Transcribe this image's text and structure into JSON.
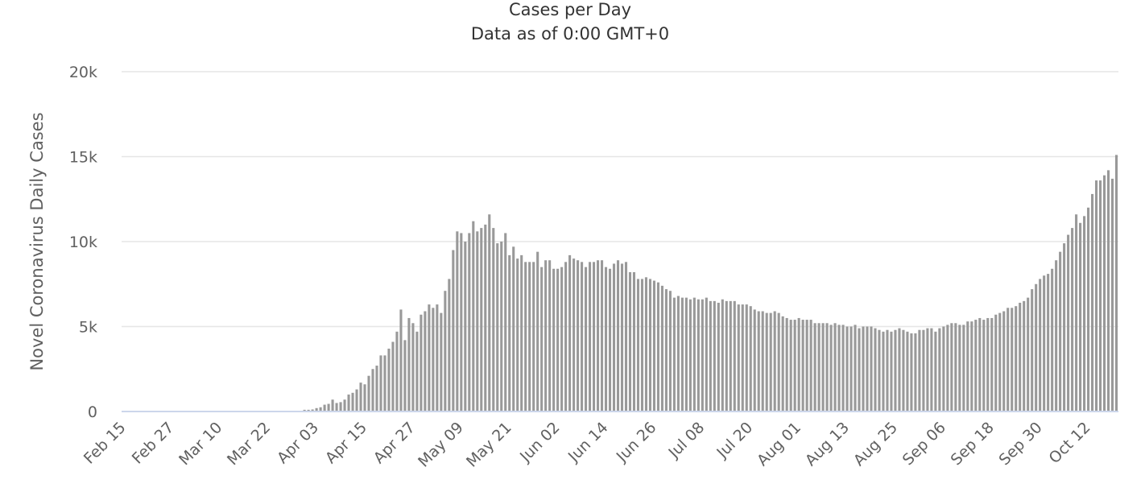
{
  "chart_data": {
    "type": "bar",
    "title": "Cases per Day",
    "subtitle": "Data as of 0:00 GMT+0",
    "ylabel": "Novel Coronavirus Daily Cases",
    "xlabel": "",
    "ylim": [
      0,
      20000
    ],
    "yticks": [
      {
        "value": 0,
        "label": "0"
      },
      {
        "value": 5000,
        "label": "5k"
      },
      {
        "value": 10000,
        "label": "10k"
      },
      {
        "value": 15000,
        "label": "15k"
      },
      {
        "value": 20000,
        "label": "20k"
      }
    ],
    "x_tick_labels": [
      "Feb 15",
      "Feb 27",
      "Mar 10",
      "Mar 22",
      "Apr 03",
      "Apr 15",
      "Apr 27",
      "May 09",
      "May 21",
      "Jun 02",
      "Jun 14",
      "Jun 26",
      "Jul 08",
      "Jul 20",
      "Aug 01",
      "Aug 13",
      "Aug 25",
      "Sep 06",
      "Sep 18",
      "Sep 30",
      "Oct 12"
    ],
    "x_start": "Feb 15",
    "grid": true,
    "legend": "none",
    "bar_color": "#999999",
    "values": [
      0,
      0,
      0,
      0,
      0,
      0,
      0,
      0,
      0,
      0,
      0,
      0,
      0,
      0,
      0,
      0,
      0,
      0,
      0,
      0,
      0,
      0,
      0,
      0,
      0,
      0,
      0,
      0,
      0,
      0,
      0,
      0,
      0,
      0,
      0,
      0,
      0,
      0,
      0,
      0,
      0,
      0,
      0,
      0,
      0,
      100,
      100,
      120,
      200,
      250,
      400,
      450,
      700,
      500,
      550,
      700,
      1000,
      1100,
      1300,
      1700,
      1600,
      2100,
      2500,
      2700,
      3300,
      3300,
      3700,
      4100,
      4700,
      6000,
      4200,
      5500,
      5200,
      4700,
      5700,
      5900,
      6300,
      6100,
      6300,
      5800,
      7100,
      7800,
      9500,
      10600,
      10500,
      10000,
      10500,
      11200,
      10600,
      10800,
      11000,
      11600,
      10800,
      9900,
      10000,
      10500,
      9200,
      9700,
      9000,
      9200,
      8800,
      8800,
      8800,
      9400,
      8500,
      8900,
      8900,
      8400,
      8400,
      8500,
      8800,
      9200,
      9000,
      8900,
      8800,
      8500,
      8800,
      8800,
      8900,
      8900,
      8500,
      8400,
      8700,
      8900,
      8700,
      8800,
      8200,
      8200,
      7800,
      7800,
      7900,
      7800,
      7700,
      7600,
      7400,
      7200,
      7100,
      6700,
      6800,
      6700,
      6700,
      6600,
      6700,
      6600,
      6600,
      6700,
      6500,
      6500,
      6400,
      6600,
      6500,
      6500,
      6500,
      6300,
      6300,
      6300,
      6200,
      6000,
      5900,
      5900,
      5800,
      5800,
      5900,
      5800,
      5600,
      5500,
      5400,
      5400,
      5500,
      5400,
      5400,
      5400,
      5200,
      5200,
      5200,
      5200,
      5100,
      5200,
      5100,
      5100,
      5000,
      5000,
      5100,
      4900,
      5000,
      5000,
      5000,
      4900,
      4800,
      4700,
      4800,
      4700,
      4800,
      4900,
      4800,
      4700,
      4600,
      4600,
      4800,
      4800,
      4900,
      4900,
      4700,
      4900,
      5000,
      5100,
      5200,
      5200,
      5100,
      5100,
      5300,
      5300,
      5400,
      5500,
      5400,
      5500,
      5500,
      5700,
      5800,
      5900,
      6100,
      6100,
      6200,
      6400,
      6500,
      6700,
      7200,
      7500,
      7800,
      8000,
      8100,
      8400,
      8900,
      9400,
      9900,
      10400,
      10800,
      11600,
      11100,
      11500,
      12000,
      12800,
      13600,
      13600,
      13900,
      14200,
      13700,
      15100
    ]
  }
}
